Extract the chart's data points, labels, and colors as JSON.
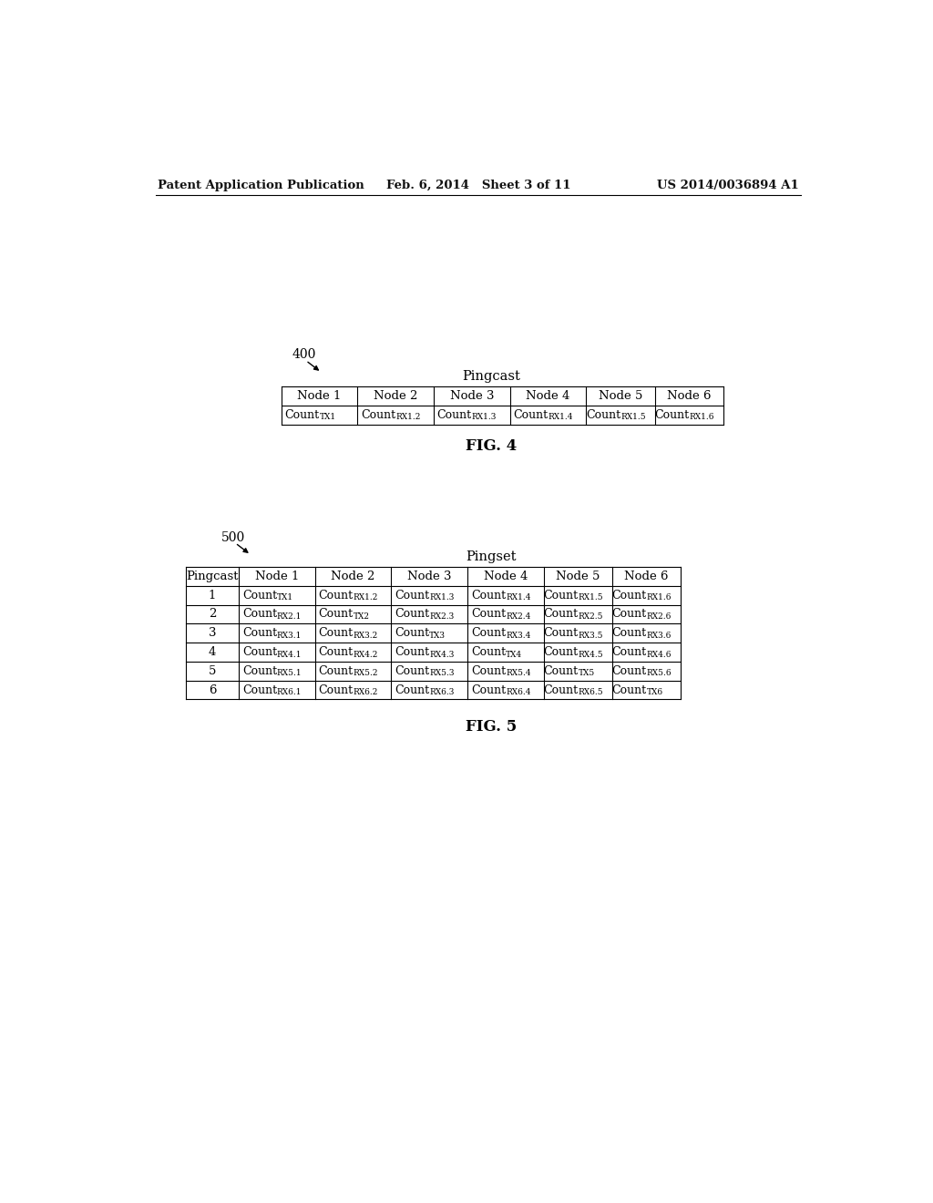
{
  "bg_color": "#ffffff",
  "header_text": {
    "left": "Patent Application Publication",
    "center": "Feb. 6, 2014   Sheet 3 of 11",
    "right": "US 2014/0036894 A1"
  },
  "fig4": {
    "label": "400",
    "title": "Pingcast",
    "fig_label": "FIG. 4",
    "headers": [
      "Node 1",
      "Node 2",
      "Node 3",
      "Node 4",
      "Node 5",
      "Node 6"
    ],
    "row_subs": [
      [
        "TX",
        "1"
      ],
      [
        "RX",
        "1.2"
      ],
      [
        "RX",
        "1.3"
      ],
      [
        "RX",
        "1.4"
      ],
      [
        "RX",
        "1.5"
      ],
      [
        "RX",
        "1.6"
      ]
    ]
  },
  "fig5": {
    "label": "500",
    "title": "Pingset",
    "fig_label": "FIG. 5",
    "col_headers": [
      "Pingcast",
      "Node 1",
      "Node 2",
      "Node 3",
      "Node 4",
      "Node 5",
      "Node 6"
    ],
    "rows_main": [
      [
        "1",
        [
          "TX",
          "1"
        ],
        [
          "RX",
          "1.2"
        ],
        [
          "RX",
          "1.3"
        ],
        [
          "RX",
          "1.4"
        ],
        [
          "RX",
          "1.5"
        ],
        [
          "RX",
          "1.6"
        ]
      ],
      [
        "2",
        [
          "RX",
          "2.1"
        ],
        [
          "TX",
          "2"
        ],
        [
          "RX",
          "2.3"
        ],
        [
          "RX",
          "2.4"
        ],
        [
          "RX",
          "2.5"
        ],
        [
          "RX",
          "2.6"
        ]
      ],
      [
        "3",
        [
          "RX",
          "3.1"
        ],
        [
          "RX",
          "3.2"
        ],
        [
          "TX",
          "3"
        ],
        [
          "RX",
          "3.4"
        ],
        [
          "RX",
          "3.5"
        ],
        [
          "RX",
          "3.6"
        ]
      ],
      [
        "4",
        [
          "RX",
          "4.1"
        ],
        [
          "RX",
          "4.2"
        ],
        [
          "RX",
          "4.3"
        ],
        [
          "TX",
          "4"
        ],
        [
          "RX",
          "4.5"
        ],
        [
          "RX",
          "4.6"
        ]
      ],
      [
        "5",
        [
          "RX",
          "5.1"
        ],
        [
          "RX",
          "5.2"
        ],
        [
          "RX",
          "5.3"
        ],
        [
          "RX",
          "5.4"
        ],
        [
          "TX",
          "5"
        ],
        [
          "RX",
          "5.6"
        ]
      ],
      [
        "6",
        [
          "RX",
          "6.1"
        ],
        [
          "RX",
          "6.2"
        ],
        [
          "RX",
          "6.3"
        ],
        [
          "RX",
          "6.4"
        ],
        [
          "RX",
          "6.5"
        ],
        [
          "TX",
          "6"
        ]
      ]
    ]
  }
}
